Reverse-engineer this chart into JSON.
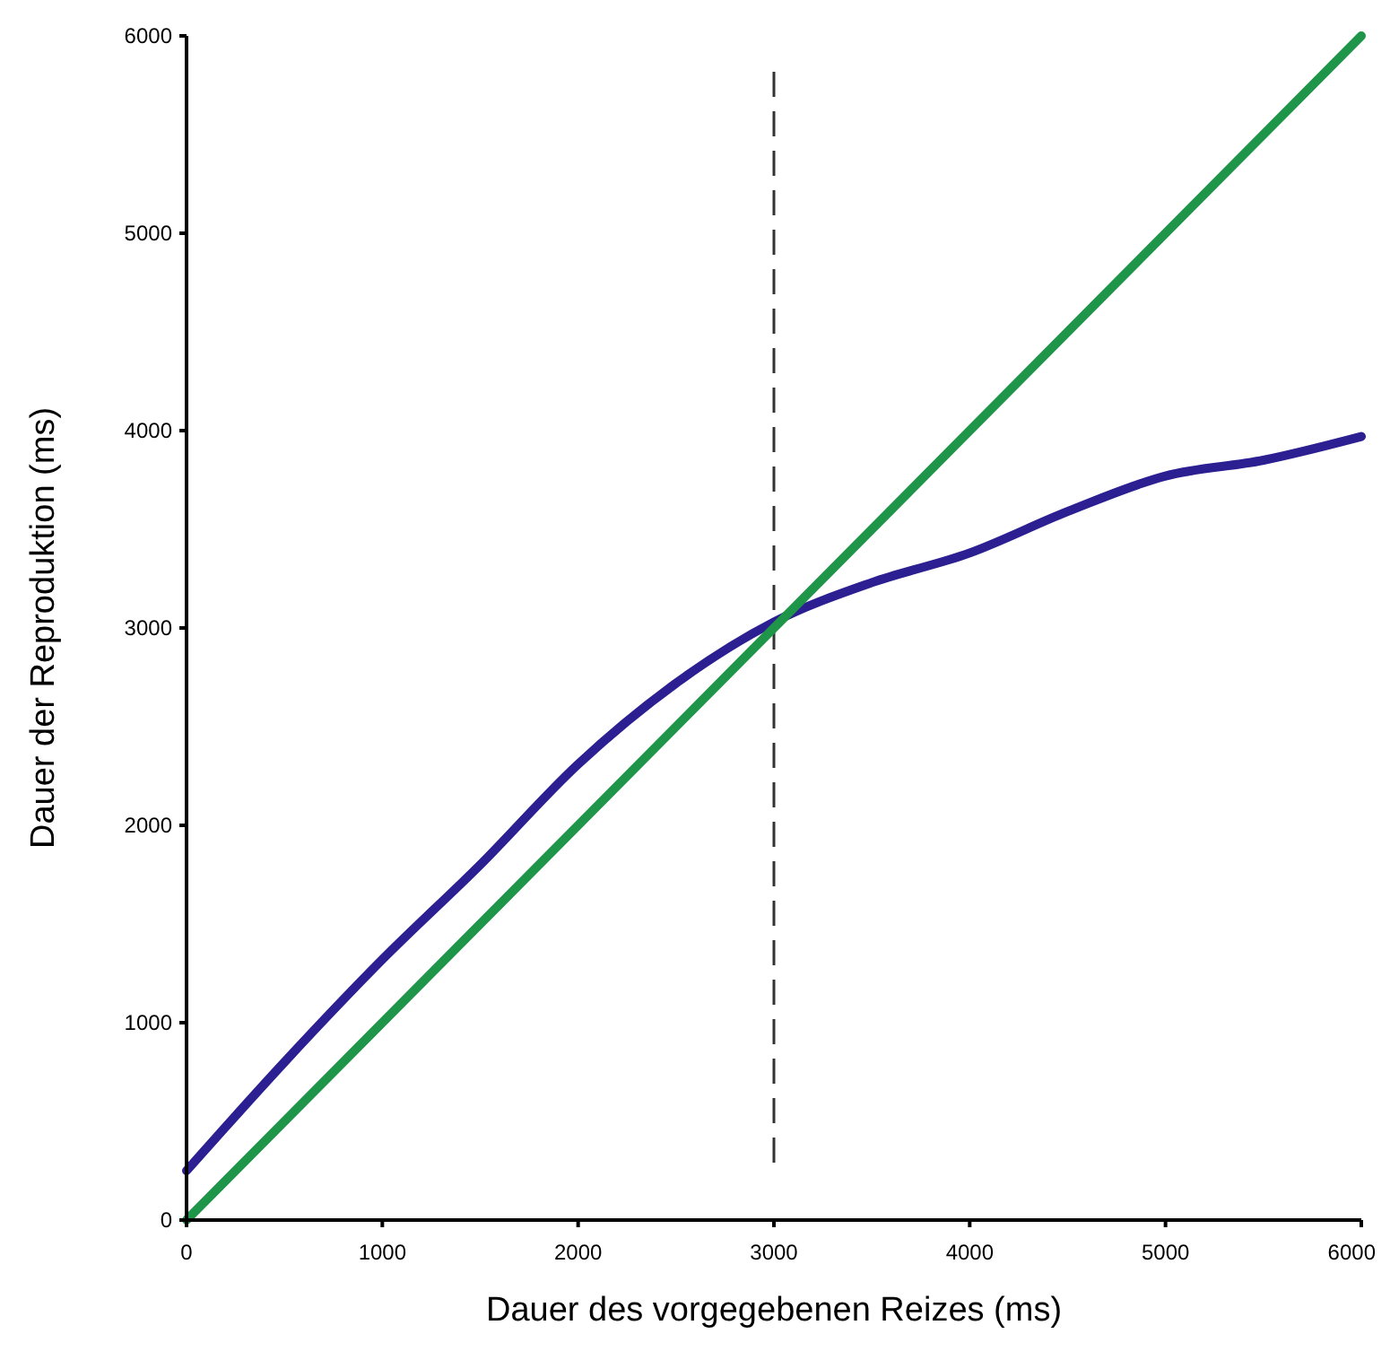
{
  "chart_data": {
    "type": "line",
    "xlabel": "Dauer des vorgegebenen Reizes (ms)",
    "ylabel": "Dauer der Reproduktion (ms)",
    "x": [
      0,
      500,
      1000,
      1500,
      2000,
      2500,
      3000,
      3500,
      4000,
      4500,
      5000,
      5500,
      6000
    ],
    "series": [
      {
        "color": "#2b1f91",
        "values": [
          250,
          800,
          1320,
          1800,
          2310,
          2720,
          3030,
          3230,
          3380,
          3590,
          3770,
          3850,
          3970
        ]
      },
      {
        "color": "#1e9548",
        "x": [
          0,
          6000
        ],
        "values": [
          0,
          6000
        ]
      }
    ],
    "xlim": [
      0,
      6000
    ],
    "ylim": [
      0,
      6000
    ],
    "xticks": [
      0,
      1000,
      2000,
      3000,
      4000,
      5000,
      6000
    ],
    "yticks": [
      0,
      1000,
      2000,
      3000,
      4000,
      5000,
      6000
    ],
    "ref_lines": [
      {
        "axis": "x",
        "value": 3000,
        "color": "#333333",
        "line_style": "dashed"
      }
    ],
    "grid": false,
    "marker": "none",
    "line_style": "solid"
  }
}
